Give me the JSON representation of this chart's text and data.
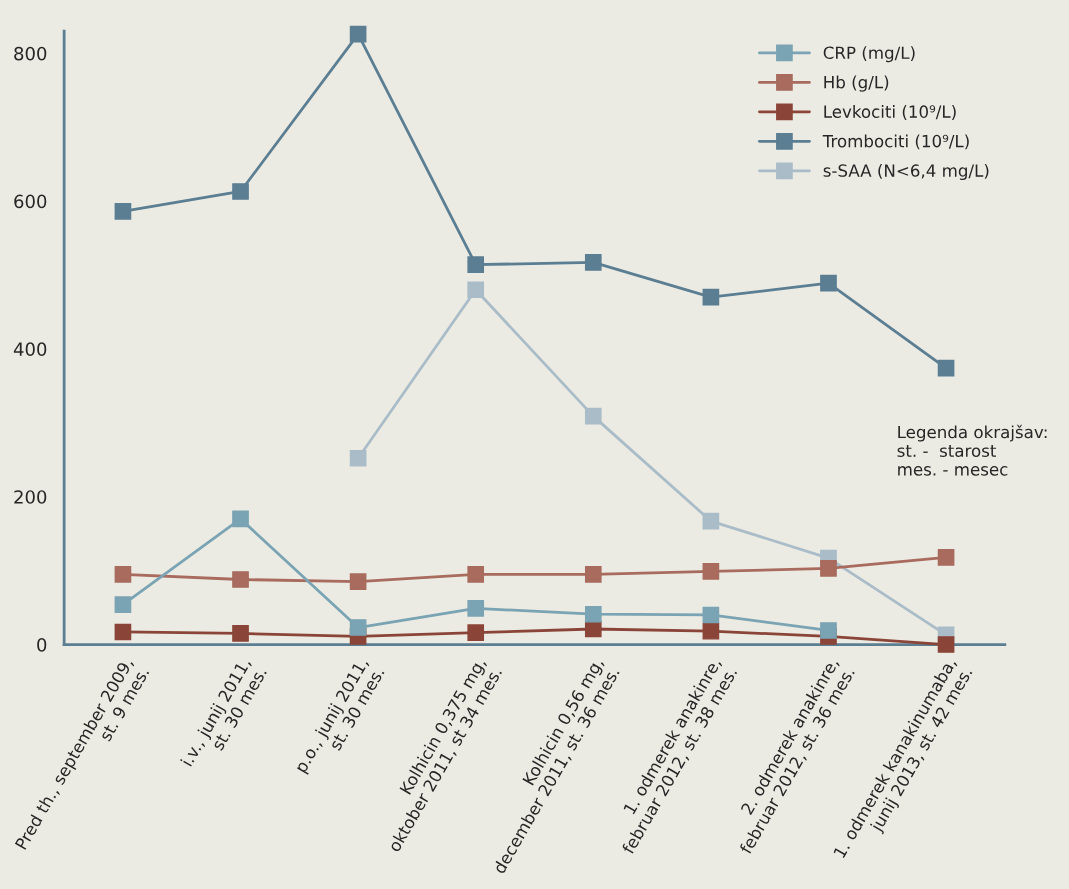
{
  "chart_data": {
    "type": "line",
    "categories": [
      "Pred th., september 2009,\nst. 9 mes.",
      "i.v., junij 2011,\nst. 30 mes.",
      "p.o., junij 2011,\nst. 30 mes.",
      "Kolhicin 0,375 mg,\noktober 2011, st 34 mes.",
      "Kolhicin 0,56 mg,\ndecember 2011, st. 36 mes.",
      "1. odmerek anakinre,\nfebruar 2012, st. 38 mes.",
      "2. odmerek anakinre,\nfebruar 2012, st. 36 mes.",
      "1. odmerek kanakinumaba,\njunij 2013, st. 42 mes."
    ],
    "series": [
      {
        "name": "CRP (mg/L)",
        "color": "#7aa3b3",
        "values": [
          54,
          170,
          23,
          49,
          41,
          40,
          19,
          null
        ]
      },
      {
        "name": "Hb (g/L)",
        "color": "#a86b5e",
        "values": [
          95,
          88,
          85,
          95,
          95,
          99,
          103,
          118
        ]
      },
      {
        "name": "Levkociti (10⁹/L)",
        "color": "#8b4538",
        "values": [
          17,
          15,
          11,
          16,
          21,
          18,
          11,
          0
        ]
      },
      {
        "name": "Trombociti (10⁹/L)",
        "color": "#5b7e93",
        "values": [
          586,
          613,
          826,
          514,
          517,
          470,
          489,
          374
        ]
      },
      {
        "name": "s-SAA (N<6,4 mg/L)",
        "color": "#a9bcc8",
        "values": [
          null,
          null,
          252,
          480,
          309,
          167,
          117,
          13
        ]
      }
    ],
    "ylim": [
      0,
      830
    ],
    "yticks": [
      0,
      200,
      400,
      600,
      800
    ],
    "grid": false,
    "legend": "top right",
    "marker": "square",
    "line_style": "solid",
    "annotations": [
      "Legenda okrajšav:\nst. -  starost\nmes. - mesec"
    ]
  }
}
